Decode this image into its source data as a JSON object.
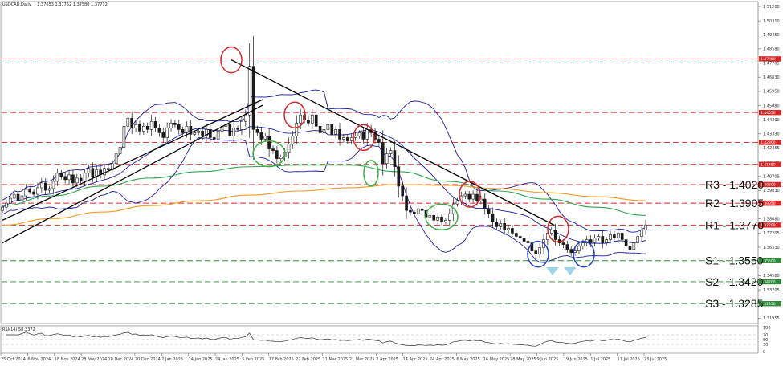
{
  "header": {
    "symbol": "USDCAD,Daily",
    "ohlc": "1.37653 1.37752 1.37580 1.37712"
  },
  "rsi_header": "RSI(14) 58.3372",
  "colors": {
    "candle": "#1a1a1a",
    "bollinger": "#1c1ca8",
    "ma_green": "#2fa84f",
    "ma_orange": "#f29b20",
    "resistance": "#d62828",
    "support": "#2e8b3a",
    "trendline": "#000000",
    "circle_red": "#d62828",
    "circle_green": "#3cb043",
    "circle_blue": "#1f3fbf",
    "triangle": "#9fd4e8",
    "rsi_line": "#333333"
  },
  "chart_data": {
    "type": "line",
    "title": "",
    "xlabel": "",
    "ylabel": "",
    "y_ticks": [
      "1.51200",
      "1.50310",
      "1.49450",
      "1.48580",
      "1.47705",
      "1.46830",
      "1.45950",
      "1.45080",
      "1.44200",
      "1.43330",
      "1.42455",
      "1.41580",
      "1.40705",
      "1.39830",
      "1.38960",
      "1.38080",
      "1.37205",
      "1.36330",
      "1.35460",
      "1.34580",
      "1.33705",
      "1.32830",
      "1.31955"
    ],
    "ylim": [
      1.3172,
      1.514
    ],
    "x_ticks": [
      "25 Oct 2024",
      "6 Nov 2024",
      "18 Nov 2024",
      "28 Nov 2024",
      "10 Dec 2024",
      "20 Dec 2024",
      "2 Jan 2025",
      "14 Jan 2025",
      "24 Jan 2025",
      "5 Feb 2025",
      "17 Feb 2025",
      "27 Feb 2025",
      "11 Mar 2025",
      "21 Mar 2025",
      "2 Apr 2025",
      "14 Apr 2025",
      "24 Apr 2025",
      "6 May 2025",
      "16 May 2025",
      "28 May 2025",
      "9 Jun 2025",
      "19 Jun 2025",
      "1 Jul 2025",
      "11 Jul 2025",
      "23 Jul 2025"
    ],
    "level_tags": [
      "1.47960",
      "1.44650",
      "1.42800",
      "1.41450",
      "1.40200",
      "1.39050",
      "1.37700",
      "1.35500",
      "1.34200",
      "1.32850"
    ],
    "levels": [
      {
        "name": "R3",
        "label": "R3 - 1.4020",
        "value": 1.402,
        "kind": "resistance"
      },
      {
        "name": "R2",
        "label": "R2 - 1.3905",
        "value": 1.3905,
        "kind": "resistance"
      },
      {
        "name": "R1",
        "label": "R1 - 1.3770",
        "value": 1.377,
        "kind": "resistance"
      },
      {
        "name": "S1",
        "label": "S1 - 1.3550",
        "value": 1.355,
        "kind": "support"
      },
      {
        "name": "S2",
        "label": "S2 - 1.3420",
        "value": 1.342,
        "kind": "support"
      },
      {
        "name": "S3",
        "label": "S3 - 1.3285",
        "value": 1.3285,
        "kind": "support"
      }
    ],
    "extra_resistance": [
      1.4796,
      1.4465,
      1.428,
      1.4145
    ],
    "close_series": [
      1.388,
      1.3905,
      1.3935,
      1.396,
      1.3925,
      1.395,
      1.399,
      1.3975,
      1.396,
      1.4,
      1.403,
      1.3985,
      1.3995,
      1.404,
      1.409,
      1.407,
      1.405,
      1.408,
      1.403,
      1.406,
      1.404,
      1.409,
      1.412,
      1.407,
      1.411,
      1.408,
      1.412,
      1.411,
      1.415,
      1.421,
      1.425,
      1.438,
      1.443,
      1.437,
      1.439,
      1.435,
      1.438,
      1.436,
      1.441,
      1.437,
      1.434,
      1.431,
      1.437,
      1.44,
      1.439,
      1.436,
      1.434,
      1.438,
      1.433,
      1.434,
      1.435,
      1.432,
      1.436,
      1.431,
      1.43,
      1.435,
      1.438,
      1.439,
      1.432,
      1.437,
      1.436,
      1.441,
      1.445,
      1.475,
      1.436,
      1.434,
      1.43,
      1.432,
      1.424,
      1.423,
      1.418,
      1.419,
      1.422,
      1.427,
      1.432,
      1.44,
      1.445,
      1.442,
      1.44,
      1.445,
      1.438,
      1.434,
      1.436,
      1.439,
      1.433,
      1.436,
      1.43,
      1.431,
      1.429,
      1.431,
      1.432,
      1.434,
      1.43,
      1.436,
      1.434,
      1.43,
      1.428,
      1.415,
      1.421,
      1.423,
      1.413,
      1.401,
      1.395,
      1.386,
      1.385,
      1.384,
      1.387,
      1.386,
      1.382,
      1.383,
      1.38,
      1.382,
      1.379,
      1.38,
      1.384,
      1.39,
      1.392,
      1.395,
      1.396,
      1.393,
      1.396,
      1.392,
      1.393,
      1.387,
      1.384,
      1.379,
      1.376,
      1.378,
      1.374,
      1.375,
      1.372,
      1.37,
      1.369,
      1.367,
      1.366,
      1.361,
      1.359,
      1.363,
      1.368,
      1.372,
      1.374,
      1.368,
      1.366,
      1.365,
      1.362,
      1.36,
      1.361,
      1.364,
      1.366,
      1.368,
      1.366,
      1.369,
      1.37,
      1.366,
      1.368,
      1.371,
      1.369,
      1.372,
      1.368,
      1.364,
      1.362,
      1.366,
      1.37,
      1.374,
      1.3771
    ],
    "series": [
      {
        "key": "sma_green",
        "values": [
          1.389,
          1.395,
          1.401,
          1.406,
          1.41,
          1.413,
          1.414,
          1.414,
          1.41,
          1.404,
          1.398,
          1.393,
          1.388,
          1.383
        ]
      },
      {
        "key": "sma_orange",
        "values": [
          1.377,
          1.381,
          1.385,
          1.389,
          1.392,
          1.3955,
          1.398,
          1.4,
          1.402,
          1.4015,
          1.3995,
          1.397,
          1.3945,
          1.392
        ]
      }
    ],
    "rsi": {
      "ylim": [
        0,
        100
      ],
      "ticks": [
        "100",
        "70",
        "50",
        "30",
        "0"
      ],
      "levels": [
        70,
        50,
        30
      ],
      "last": 58.3372
    }
  }
}
